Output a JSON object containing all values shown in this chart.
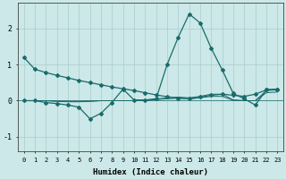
{
  "xlabel": "Humidex (Indice chaleur)",
  "background_color": "#cce8e8",
  "grid_color": "#aacccc",
  "line_color": "#1a6b6b",
  "xlim": [
    -0.5,
    23.5
  ],
  "ylim": [
    -1.4,
    2.7
  ],
  "yticks": [
    -1,
    0,
    1,
    2
  ],
  "xticks": [
    0,
    1,
    2,
    3,
    4,
    5,
    6,
    7,
    8,
    9,
    10,
    11,
    12,
    13,
    14,
    15,
    16,
    17,
    18,
    19,
    20,
    21,
    22,
    23
  ],
  "series_decline_x": [
    0,
    1,
    2,
    3,
    4,
    5,
    6,
    7,
    8,
    9,
    10,
    11,
    12,
    13,
    14,
    15,
    16,
    17,
    18,
    19,
    20,
    21,
    22,
    23
  ],
  "series_decline_y": [
    1.2,
    0.87,
    0.78,
    0.7,
    0.63,
    0.56,
    0.5,
    0.44,
    0.38,
    0.33,
    0.28,
    0.22,
    0.16,
    0.11,
    0.07,
    0.05,
    0.1,
    0.15,
    0.18,
    0.15,
    0.12,
    0.18,
    0.3,
    0.32
  ],
  "series_peak_x": [
    0,
    1,
    2,
    3,
    4,
    5,
    6,
    7,
    8,
    9,
    10,
    11,
    12,
    13,
    14,
    15,
    16,
    17,
    18,
    19,
    20,
    21,
    22,
    23
  ],
  "series_peak_y": [
    0.0,
    0.0,
    -0.05,
    -0.08,
    -0.12,
    -0.18,
    -0.5,
    -0.35,
    -0.05,
    0.32,
    0.02,
    0.02,
    0.05,
    1.0,
    1.75,
    2.4,
    2.15,
    1.45,
    0.85,
    0.2,
    0.05,
    -0.12,
    0.3,
    0.32
  ],
  "series_flat1_x": [
    0,
    1,
    2,
    3,
    4,
    5,
    6,
    7,
    8,
    9,
    10,
    11,
    12,
    13,
    14,
    15,
    16,
    17,
    18,
    19,
    20,
    21,
    22,
    23
  ],
  "series_flat1_y": [
    0.0,
    0.0,
    0.0,
    -0.02,
    -0.03,
    -0.03,
    -0.02,
    0.0,
    0.0,
    0.0,
    0.0,
    0.0,
    0.05,
    0.08,
    0.1,
    0.08,
    0.12,
    0.18,
    0.18,
    0.02,
    0.0,
    0.0,
    0.28,
    0.3
  ],
  "series_flat2_x": [
    0,
    1,
    2,
    3,
    4,
    5,
    6,
    7,
    8,
    9,
    10,
    11,
    12,
    13,
    14,
    15,
    16,
    17,
    18,
    19,
    20,
    21,
    22,
    23
  ],
  "series_flat2_y": [
    0.0,
    0.0,
    0.0,
    -0.01,
    -0.02,
    -0.02,
    -0.01,
    0.0,
    0.0,
    0.0,
    0.0,
    0.0,
    0.03,
    0.05,
    0.07,
    0.05,
    0.08,
    0.12,
    0.12,
    0.01,
    0.0,
    0.0,
    0.22,
    0.24
  ]
}
